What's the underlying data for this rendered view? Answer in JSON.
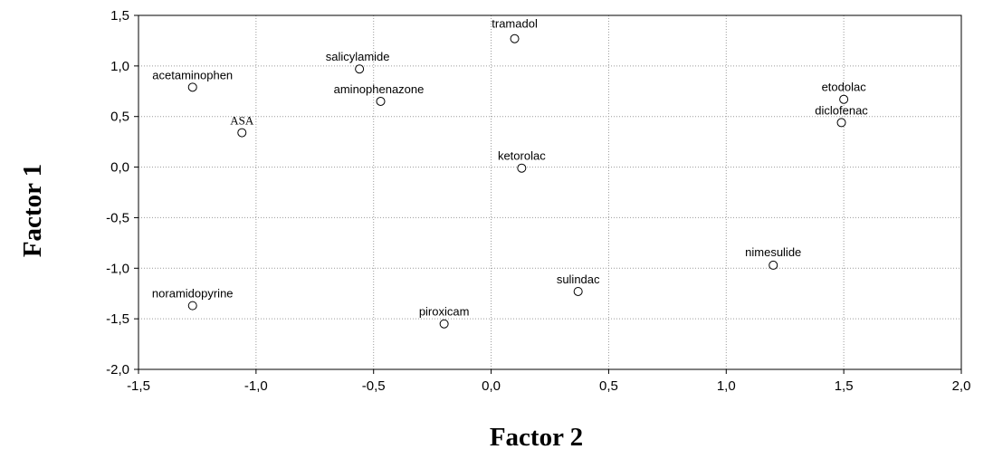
{
  "chart_data": {
    "type": "scatter",
    "xlabel": "Factor 2",
    "ylabel": "Factor 1",
    "xlim": [
      -1.5,
      2.0
    ],
    "ylim": [
      -2.0,
      1.5
    ],
    "xticks": [
      -1.5,
      -1.0,
      -0.5,
      0.0,
      0.5,
      1.0,
      1.5,
      2.0
    ],
    "yticks": [
      -2.0,
      -1.5,
      -1.0,
      -0.5,
      0.0,
      0.5,
      1.0,
      1.5
    ],
    "xtick_labels": [
      "-1,5",
      "-1,0",
      "-0,5",
      "0,0",
      "0,5",
      "1,0",
      "1,5",
      "2,0"
    ],
    "ytick_labels": [
      "-2,0",
      "-1,5",
      "-1,0",
      "-0,5",
      "0,0",
      "0,5",
      "1,0",
      "1,5"
    ],
    "grid": true,
    "points": [
      {
        "label": "tramadol",
        "x": 0.1,
        "y": 1.27
      },
      {
        "label": "salicylamide",
        "x": -0.56,
        "y": 0.97
      },
      {
        "label": "acetaminophen",
        "x": -1.27,
        "y": 0.79
      },
      {
        "label": "aminophenazone",
        "x": -0.47,
        "y": 0.65
      },
      {
        "label": "ASA",
        "x": -1.06,
        "y": 0.34
      },
      {
        "label": "etodolac",
        "x": 1.5,
        "y": 0.67
      },
      {
        "label": "diclofenac",
        "x": 1.49,
        "y": 0.44
      },
      {
        "label": "ketorolac",
        "x": 0.13,
        "y": -0.01
      },
      {
        "label": "nimesulide",
        "x": 1.2,
        "y": -0.97
      },
      {
        "label": "sulindac",
        "x": 0.37,
        "y": -1.23
      },
      {
        "label": "noramidopyrine",
        "x": -1.27,
        "y": -1.37
      },
      {
        "label": "piroxicam",
        "x": -0.2,
        "y": -1.55
      }
    ]
  }
}
